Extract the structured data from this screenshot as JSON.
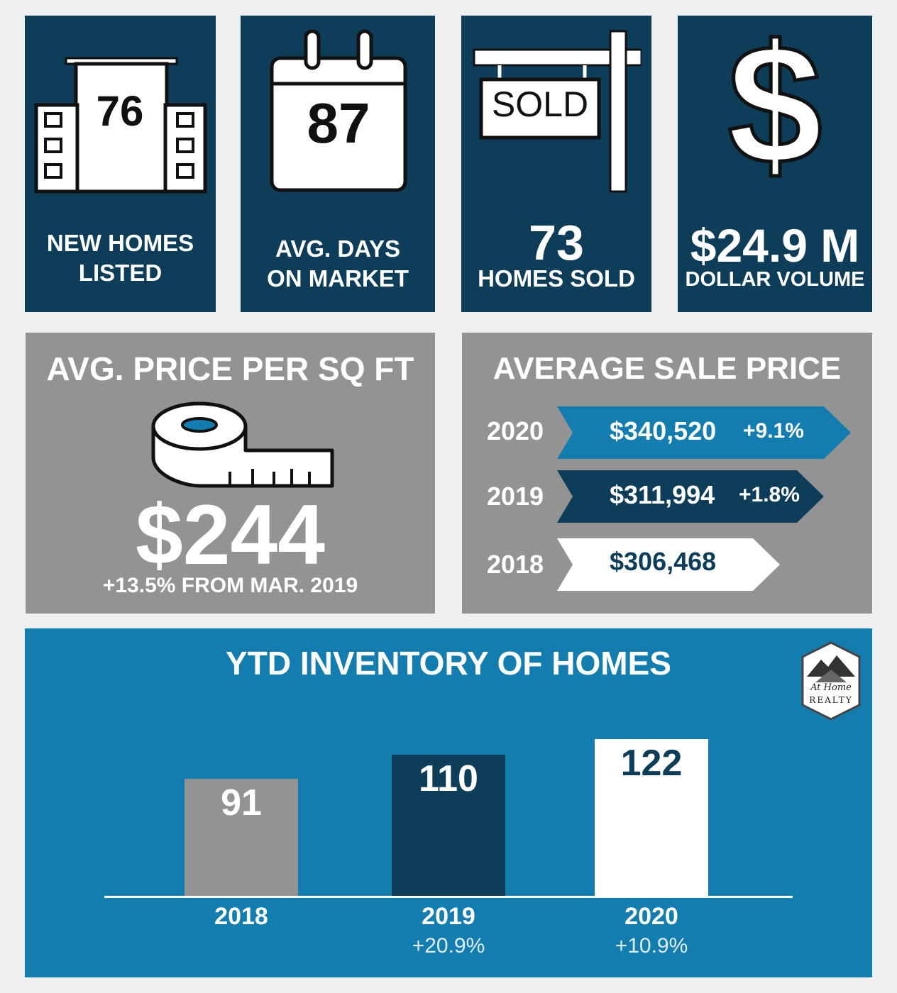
{
  "colors": {
    "navy": "#0e3d59",
    "blue": "#147db0",
    "grey": "#939393",
    "white": "#ffffff",
    "background": "#f0f0f0"
  },
  "tiles": {
    "new_homes": {
      "icon": "buildings-icon",
      "value": "76",
      "label_line1": "NEW HOMES",
      "label_line2": "LISTED"
    },
    "days_on_market": {
      "icon": "calendar-icon",
      "value": "87",
      "label_line1": "AVG. DAYS",
      "label_line2": "ON MARKET"
    },
    "homes_sold": {
      "icon": "sold-sign-icon",
      "sign_text": "SOLD",
      "value": "73",
      "label": "HOMES SOLD"
    },
    "dollar_volume": {
      "icon": "dollar-icon",
      "value": "$24.9 M",
      "label": "DOLLAR VOLUME"
    }
  },
  "price_per_sqft": {
    "title": "AVG. PRICE PER SQ FT",
    "icon": "tape-measure-icon",
    "value": "$244",
    "change": "+13.5% FROM MAR. 2019"
  },
  "average_sale_price": {
    "title": "AVERAGE SALE PRICE",
    "rows": [
      {
        "year": "2020",
        "price": "$340,520",
        "change": "+9.1%"
      },
      {
        "year": "2019",
        "price": "$311,994",
        "change": "+1.8%"
      },
      {
        "year": "2018",
        "price": "$306,468",
        "change": ""
      }
    ]
  },
  "inventory": {
    "title": "YTD INVENTORY OF HOMES",
    "logo": {
      "icon": "at-home-realty-logo",
      "line1": "At Home",
      "line2": "REALTY"
    }
  },
  "chart_data": {
    "type": "bar",
    "title": "YTD INVENTORY OF HOMES",
    "categories": [
      "2018",
      "2019",
      "2020"
    ],
    "values": [
      91,
      110,
      122
    ],
    "changes": [
      "",
      "+20.9%",
      "+10.9%"
    ],
    "bar_colors": [
      "#939393",
      "#0e3d59",
      "#ffffff"
    ],
    "label_colors": [
      "#ffffff",
      "#ffffff",
      "#0e3d59"
    ],
    "ylim": [
      0,
      130
    ],
    "grid": false
  }
}
